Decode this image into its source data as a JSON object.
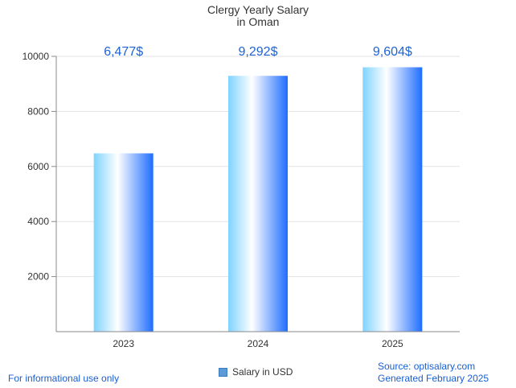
{
  "chart_data": {
    "type": "bar",
    "title": "Clergy Yearly Salary",
    "subtitle": "in Oman",
    "categories": [
      "2023",
      "2024",
      "2025"
    ],
    "series": [
      {
        "name": "Salary in USD",
        "values": [
          6477,
          9292,
          9604
        ]
      }
    ],
    "data_labels": [
      "6,477$",
      "9,292$",
      "9,604$"
    ],
    "y_ticks": [
      2000,
      4000,
      6000,
      8000,
      10000
    ],
    "ylim": [
      0,
      10000
    ],
    "grid": true,
    "legend_position": "bottom-center",
    "colors": {
      "bar_light": "#7fd3ff",
      "bar_white": "#ffffff",
      "bar_dark": "#1e6dff",
      "label": "#1e63d6"
    }
  },
  "footer": {
    "left": "For informational use only",
    "source": "Source: optisalary.com",
    "generated": "Generated February 2025"
  }
}
